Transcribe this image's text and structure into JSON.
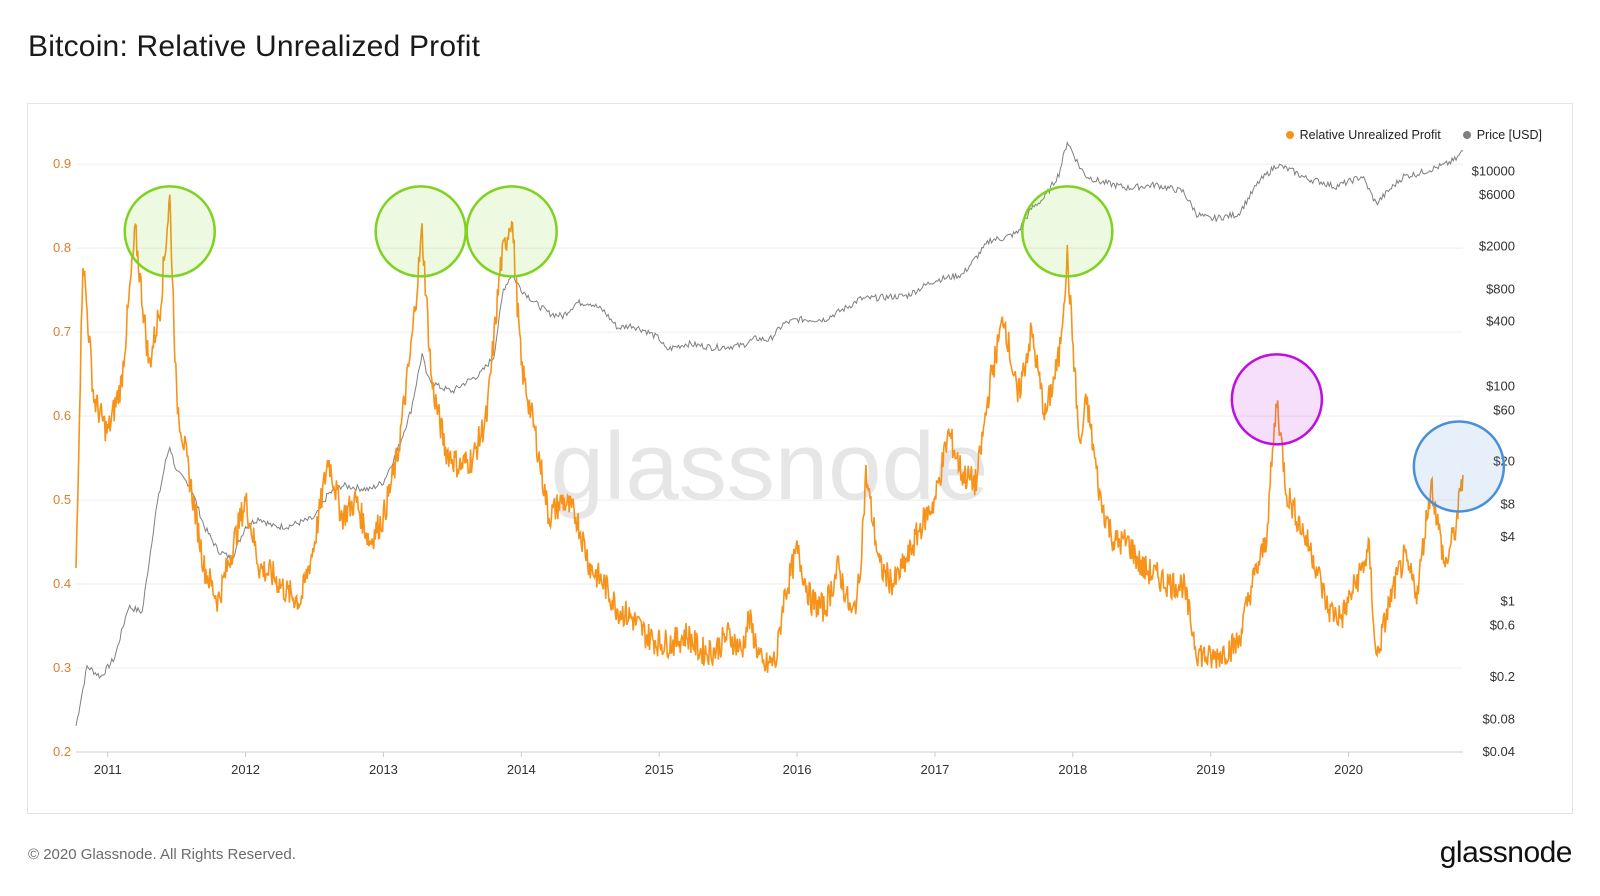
{
  "page": {
    "title": "Bitcoin: Relative Unrealized Profit",
    "copyright": "© 2020 Glassnode. All Rights Reserved.",
    "brand": "glassnode",
    "watermark": "glassnode"
  },
  "colors": {
    "primary_series": "#f7931a",
    "price_series": "#808080",
    "circle_green": "#7ed321",
    "circle_purple": "#bd10e0",
    "circle_blue": "#4a90d9",
    "axis_left_text": "#d4812a",
    "axis_right_text": "#333333",
    "grid": "#eeeeee"
  },
  "chart_data": {
    "type": "line",
    "title": "Bitcoin: Relative Unrealized Profit",
    "legend": [
      {
        "name": "Relative Unrealized Profit",
        "color": "#f7931a"
      },
      {
        "name": "Price [USD]",
        "color": "#808080"
      }
    ],
    "legend_position": "top-right",
    "x_axis": {
      "ticks": [
        "2011",
        "2012",
        "2013",
        "2014",
        "2015",
        "2016",
        "2017",
        "2018",
        "2019",
        "2020"
      ],
      "range": [
        2010.77,
        2020.83
      ]
    },
    "y_left": {
      "ticks": [
        "0.2",
        "0.3",
        "0.4",
        "0.5",
        "0.6",
        "0.7",
        "0.8",
        "0.9"
      ],
      "range": [
        0.2,
        0.93
      ]
    },
    "y_right": {
      "scale": "log",
      "ticks": [
        "$0.04",
        "$0.08",
        "$0.2",
        "$0.6",
        "$1",
        "$4",
        "$8",
        "$20",
        "$60",
        "$100",
        "$400",
        "$800",
        "$2000",
        "$6000",
        "$10000"
      ],
      "values": [
        0.04,
        0.08,
        0.2,
        0.6,
        1,
        4,
        8,
        20,
        60,
        100,
        400,
        800,
        2000,
        6000,
        10000
      ],
      "range": [
        0.04,
        20000
      ]
    },
    "series": [
      {
        "name": "Relative Unrealized Profit",
        "axis": "left",
        "x": [
          2010.77,
          2010.82,
          2010.9,
          2011.0,
          2011.1,
          2011.2,
          2011.3,
          2011.38,
          2011.45,
          2011.5,
          2011.6,
          2011.7,
          2011.8,
          2011.9,
          2012.0,
          2012.1,
          2012.2,
          2012.3,
          2012.4,
          2012.5,
          2012.6,
          2012.7,
          2012.8,
          2012.9,
          2013.0,
          2013.1,
          2013.2,
          2013.28,
          2013.35,
          2013.45,
          2013.55,
          2013.65,
          2013.75,
          2013.85,
          2013.93,
          2014.0,
          2014.1,
          2014.2,
          2014.3,
          2014.4,
          2014.5,
          2014.6,
          2014.7,
          2014.8,
          2014.9,
          2015.0,
          2015.1,
          2015.2,
          2015.3,
          2015.4,
          2015.5,
          2015.6,
          2015.65,
          2015.75,
          2015.85,
          2015.9,
          2016.0,
          2016.1,
          2016.2,
          2016.3,
          2016.4,
          2016.45,
          2016.5,
          2016.6,
          2016.7,
          2016.8,
          2016.9,
          2017.0,
          2017.1,
          2017.2,
          2017.3,
          2017.4,
          2017.5,
          2017.6,
          2017.7,
          2017.8,
          2017.9,
          2017.96,
          2018.05,
          2018.1,
          2018.2,
          2018.3,
          2018.4,
          2018.5,
          2018.6,
          2018.7,
          2018.8,
          2018.9,
          2019.0,
          2019.1,
          2019.2,
          2019.3,
          2019.4,
          2019.48,
          2019.55,
          2019.65,
          2019.75,
          2019.85,
          2019.95,
          2020.05,
          2020.15,
          2020.2,
          2020.3,
          2020.4,
          2020.5,
          2020.55,
          2020.6,
          2020.7,
          2020.78,
          2020.83
        ],
        "y": [
          0.42,
          0.79,
          0.62,
          0.58,
          0.64,
          0.82,
          0.66,
          0.73,
          0.86,
          0.62,
          0.52,
          0.42,
          0.38,
          0.44,
          0.5,
          0.42,
          0.41,
          0.39,
          0.38,
          0.45,
          0.55,
          0.48,
          0.5,
          0.45,
          0.48,
          0.55,
          0.68,
          0.82,
          0.64,
          0.56,
          0.54,
          0.55,
          0.6,
          0.78,
          0.84,
          0.66,
          0.58,
          0.48,
          0.5,
          0.48,
          0.42,
          0.4,
          0.37,
          0.36,
          0.34,
          0.33,
          0.33,
          0.34,
          0.32,
          0.32,
          0.34,
          0.32,
          0.36,
          0.3,
          0.31,
          0.38,
          0.44,
          0.38,
          0.37,
          0.42,
          0.36,
          0.4,
          0.53,
          0.42,
          0.4,
          0.43,
          0.47,
          0.5,
          0.58,
          0.53,
          0.52,
          0.64,
          0.72,
          0.62,
          0.7,
          0.6,
          0.67,
          0.79,
          0.56,
          0.62,
          0.5,
          0.45,
          0.45,
          0.42,
          0.41,
          0.4,
          0.4,
          0.32,
          0.31,
          0.32,
          0.33,
          0.4,
          0.45,
          0.62,
          0.51,
          0.47,
          0.43,
          0.37,
          0.36,
          0.4,
          0.44,
          0.31,
          0.38,
          0.43,
          0.39,
          0.46,
          0.52,
          0.42,
          0.47,
          0.53
        ]
      },
      {
        "name": "Price [USD]",
        "axis": "right",
        "x": [
          2010.77,
          2010.85,
          2010.95,
          2011.05,
          2011.15,
          2011.25,
          2011.35,
          2011.42,
          2011.45,
          2011.5,
          2011.6,
          2011.7,
          2011.8,
          2011.9,
          2012.0,
          2012.1,
          2012.2,
          2012.3,
          2012.5,
          2012.6,
          2012.7,
          2012.9,
          2013.0,
          2013.1,
          2013.2,
          2013.28,
          2013.32,
          2013.4,
          2013.5,
          2013.6,
          2013.7,
          2013.8,
          2013.87,
          2013.93,
          2014.0,
          2014.1,
          2014.2,
          2014.3,
          2014.4,
          2014.5,
          2014.6,
          2014.7,
          2014.8,
          2014.9,
          2015.0,
          2015.05,
          2015.2,
          2015.4,
          2015.6,
          2015.7,
          2015.8,
          2015.9,
          2016.0,
          2016.2,
          2016.4,
          2016.45,
          2016.6,
          2016.8,
          2016.95,
          2017.0,
          2017.2,
          2017.4,
          2017.5,
          2017.6,
          2017.7,
          2017.8,
          2017.9,
          2017.96,
          2018.05,
          2018.1,
          2018.2,
          2018.4,
          2018.6,
          2018.8,
          2018.9,
          2019.0,
          2019.2,
          2019.35,
          2019.48,
          2019.6,
          2019.7,
          2019.8,
          2019.9,
          2020.0,
          2020.1,
          2020.2,
          2020.3,
          2020.4,
          2020.5,
          2020.6,
          2020.7,
          2020.78,
          2020.83
        ],
        "y": [
          0.07,
          0.25,
          0.2,
          0.3,
          0.9,
          0.8,
          7,
          20,
          28,
          16,
          12,
          5,
          3,
          2.5,
          5,
          6,
          5,
          5,
          6,
          10,
          12,
          11,
          13,
          25,
          60,
          200,
          120,
          100,
          90,
          110,
          130,
          190,
          800,
          1100,
          800,
          600,
          480,
          450,
          600,
          600,
          500,
          350,
          370,
          330,
          280,
          220,
          250,
          230,
          240,
          280,
          270,
          380,
          420,
          420,
          580,
          650,
          670,
          700,
          900,
          970,
          1100,
          2300,
          2400,
          2700,
          4500,
          5800,
          9500,
          19000,
          11000,
          9000,
          8000,
          7000,
          7500,
          6500,
          4000,
          3600,
          4000,
          8000,
          11500,
          10000,
          8500,
          8000,
          7200,
          8000,
          9000,
          5000,
          6800,
          9000,
          9500,
          10500,
          11500,
          13000,
          15500
        ]
      }
    ],
    "annotations": [
      {
        "type": "circle",
        "color": "green",
        "x": 2011.45,
        "y": 0.82
      },
      {
        "type": "circle",
        "color": "green",
        "x": 2013.27,
        "y": 0.82
      },
      {
        "type": "circle",
        "color": "green",
        "x": 2013.93,
        "y": 0.82
      },
      {
        "type": "circle",
        "color": "green",
        "x": 2017.96,
        "y": 0.82
      },
      {
        "type": "circle",
        "color": "purple",
        "x": 2019.48,
        "y": 0.62
      },
      {
        "type": "circle",
        "color": "blue",
        "x": 2020.8,
        "y": 0.54
      }
    ]
  }
}
